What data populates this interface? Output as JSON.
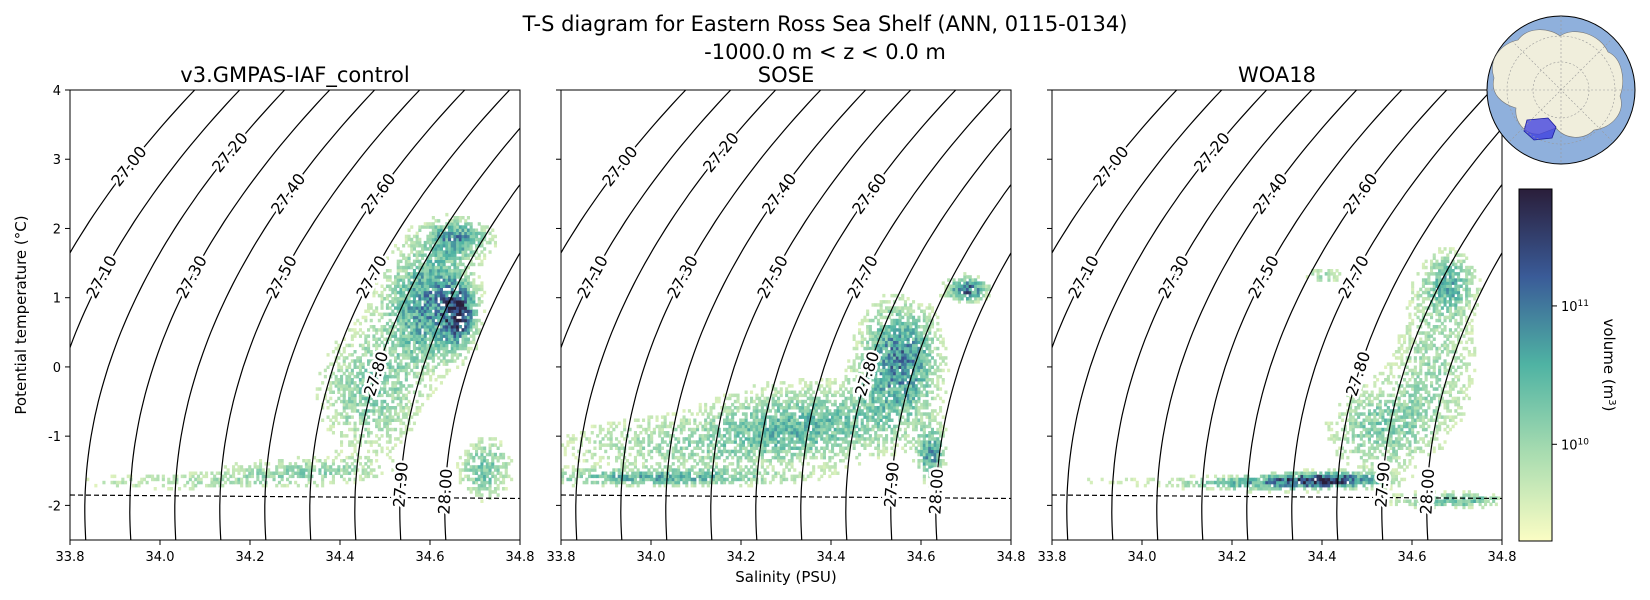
{
  "title": {
    "line1": "T-S diagram for Eastern Ross Sea Shelf (ANN, 0115-0134)",
    "line2": "-1000.0 m < z < 0.0 m"
  },
  "colors": {
    "histogram_low": "#fbfdc4",
    "histogram_mid": "#4fb3a3",
    "histogram_high": "#302b4f",
    "map_ocean": "#8fb0dc",
    "map_land": "#f0eedc",
    "map_region": "#3a3ae0"
  },
  "colorbar": {
    "label": "volume (m³)",
    "label_base": "volume (m",
    "label_sup": "3",
    "label_close": ")",
    "scale": "log",
    "range": [
      2000000000,
      700000000000
    ],
    "ticks": [
      {
        "value": 10000000000,
        "base": "10",
        "exp": "10"
      },
      {
        "value": 100000000000,
        "base": "10",
        "exp": "11"
      }
    ]
  },
  "chart_data": {
    "type": "heatmap",
    "shared": {
      "xlabel": "Salinity (PSU)",
      "ylabel": "Potential temperature (°C)",
      "xlim": [
        33.8,
        34.8
      ],
      "ylim": [
        -2.5,
        4.0
      ],
      "xticks": [
        "33.8",
        "34.0",
        "34.2",
        "34.4",
        "34.6",
        "34.8"
      ],
      "yticks": [
        "-2",
        "-1",
        "0",
        "1",
        "2",
        "3",
        "4"
      ],
      "freezing_line": [
        {
          "s": 33.8,
          "t": -1.85
        },
        {
          "s": 34.8,
          "t": -1.9
        }
      ],
      "isopycnals": [
        {
          "label": "27.00",
          "value": 27.0,
          "label_t": 2.9
        },
        {
          "label": "27.10",
          "value": 27.1,
          "label_t": 1.3
        },
        {
          "label": "27.20",
          "value": 27.2,
          "label_t": 3.1
        },
        {
          "label": "27.30",
          "value": 27.3,
          "label_t": 1.3
        },
        {
          "label": "27.40",
          "value": 27.4,
          "label_t": 2.5
        },
        {
          "label": "27.50",
          "value": 27.5,
          "label_t": 1.3
        },
        {
          "label": "27.60",
          "value": 27.6,
          "label_t": 2.5
        },
        {
          "label": "27.70",
          "value": 27.7,
          "label_t": 1.3
        },
        {
          "label": "27.80",
          "value": 27.8,
          "label_t": -0.1
        },
        {
          "label": "27.90",
          "value": 27.9,
          "label_t": -1.7
        },
        {
          "label": "28.00",
          "value": 28.0,
          "label_t": -1.8
        }
      ]
    },
    "panels": [
      {
        "title": "v3.GMPAS-IAF_control",
        "clusters": [
          {
            "s": 34.02,
            "t": -1.68,
            "ds": 0.19,
            "dt": 0.09,
            "weight": 0.3
          },
          {
            "s": 34.3,
            "t": -1.52,
            "ds": 0.12,
            "dt": 0.13,
            "weight": 0.4
          },
          {
            "s": 34.46,
            "t": -0.4,
            "ds": 0.08,
            "dt": 0.65,
            "weight": 0.45
          },
          {
            "s": 34.6,
            "t": 0.9,
            "ds": 0.07,
            "dt": 0.6,
            "weight": 0.75
          },
          {
            "s": 34.66,
            "t": 0.75,
            "ds": 0.02,
            "dt": 0.25,
            "weight": 0.95
          },
          {
            "s": 34.66,
            "t": 1.85,
            "ds": 0.05,
            "dt": 0.18,
            "weight": 0.6
          },
          {
            "s": 34.72,
            "t": -1.5,
            "ds": 0.04,
            "dt": 0.3,
            "weight": 0.55
          }
        ]
      },
      {
        "title": "SOSE",
        "clusters": [
          {
            "s": 34.05,
            "t": -1.15,
            "ds": 0.22,
            "dt": 0.3,
            "weight": 0.35
          },
          {
            "s": 34.0,
            "t": -1.62,
            "ds": 0.2,
            "dt": 0.08,
            "weight": 0.55
          },
          {
            "s": 34.35,
            "t": -0.8,
            "ds": 0.15,
            "dt": 0.4,
            "weight": 0.5
          },
          {
            "s": 34.55,
            "t": 0.1,
            "ds": 0.06,
            "dt": 0.55,
            "weight": 0.8
          },
          {
            "s": 34.62,
            "t": -1.3,
            "ds": 0.02,
            "dt": 0.25,
            "weight": 0.7
          },
          {
            "s": 34.7,
            "t": 1.1,
            "ds": 0.03,
            "dt": 0.12,
            "weight": 0.95
          }
        ]
      },
      {
        "title": "WOA18",
        "clusters": [
          {
            "s": 33.9,
            "t": -1.65,
            "ds": 0.08,
            "dt": 0.1,
            "weight": 0.15
          },
          {
            "s": 34.25,
            "t": -1.7,
            "ds": 0.15,
            "dt": 0.08,
            "weight": 0.55
          },
          {
            "s": 34.4,
            "t": -1.65,
            "ds": 0.08,
            "dt": 0.07,
            "weight": 0.98
          },
          {
            "s": 34.52,
            "t": -0.9,
            "ds": 0.08,
            "dt": 0.45,
            "weight": 0.45
          },
          {
            "s": 34.65,
            "t": 0.1,
            "ds": 0.07,
            "dt": 0.8,
            "weight": 0.35
          },
          {
            "s": 34.68,
            "t": 1.2,
            "ds": 0.04,
            "dt": 0.3,
            "weight": 0.5
          },
          {
            "s": 34.4,
            "t": 1.3,
            "ds": 0.03,
            "dt": 0.08,
            "weight": 0.4
          },
          {
            "s": 34.7,
            "t": -1.95,
            "ds": 0.1,
            "dt": 0.08,
            "weight": 0.55
          }
        ]
      }
    ]
  }
}
